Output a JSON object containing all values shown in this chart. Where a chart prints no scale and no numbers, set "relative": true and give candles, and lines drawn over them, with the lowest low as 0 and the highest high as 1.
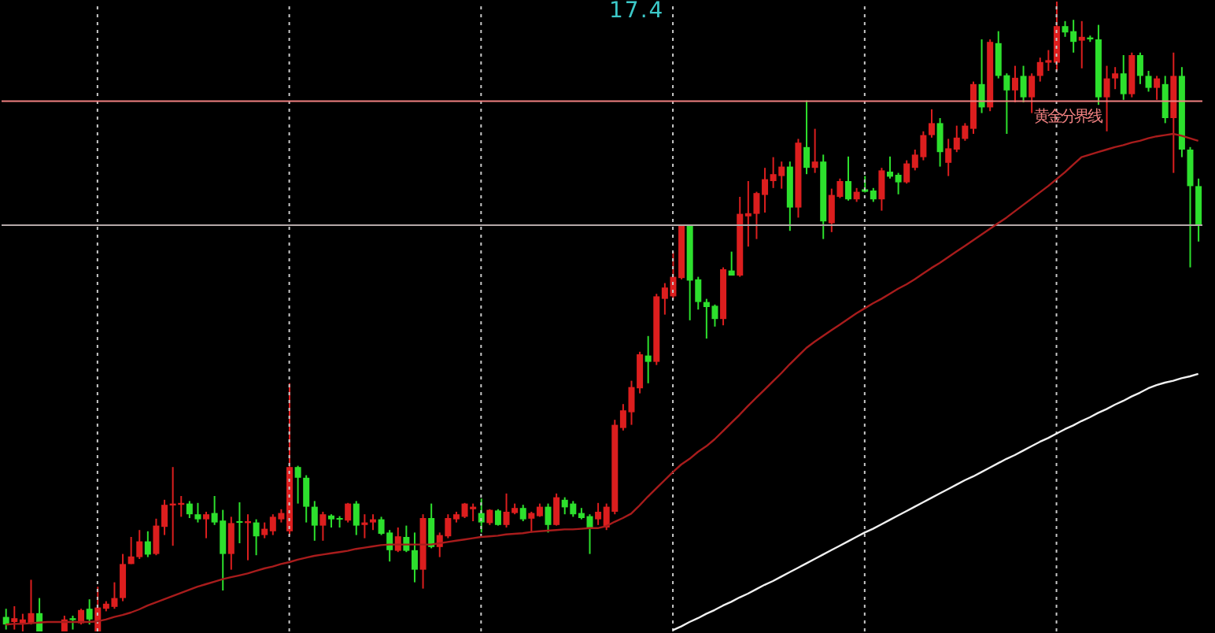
{
  "chart_data": {
    "type": "candlestick",
    "relative": true,
    "annotations": [
      "17.4"
    ],
    "categories": [
      null,
      null,
      null,
      null,
      null,
      null,
      null,
      null,
      null,
      null,
      null,
      null,
      null,
      null,
      null,
      null,
      null,
      null,
      null,
      null,
      null,
      null,
      null,
      null,
      null,
      null,
      null,
      null,
      null,
      null,
      null,
      null,
      null,
      null,
      null,
      null,
      null,
      null,
      null,
      null,
      null,
      null,
      null,
      null,
      null,
      null,
      null,
      null,
      null,
      null,
      null,
      null,
      null,
      null,
      null,
      null,
      null,
      null,
      null,
      null,
      null,
      null,
      null,
      null,
      null,
      null,
      null,
      null,
      null,
      null,
      null,
      null,
      null,
      null,
      null,
      null,
      null,
      null,
      null,
      null,
      null,
      null,
      null,
      null,
      null,
      null,
      null,
      null,
      null,
      null,
      null,
      null,
      null,
      null,
      null,
      null,
      null,
      null,
      null,
      null,
      null,
      null,
      null,
      null,
      null,
      null,
      null,
      null,
      null,
      null,
      null,
      null,
      null,
      null,
      null,
      null,
      null,
      null,
      null,
      null,
      null,
      null,
      null,
      null,
      null,
      null,
      null,
      null,
      null,
      null,
      null,
      null,
      null,
      null,
      null,
      null,
      null,
      null,
      null,
      null,
      null,
      null,
      null,
      null
    ],
    "ohlc": [
      [
        0.023,
        0.036,
        0.003,
        0.011
      ],
      [
        0.015,
        0.04,
        0.003,
        0.021
      ],
      [
        0.013,
        0.028,
        0,
        0.019
      ],
      [
        0.013,
        0.082,
        0.011,
        0.029
      ],
      [
        0.029,
        0.053,
        0,
        0
      ],
      null,
      null,
      [
        0,
        0.025,
        0,
        0.019
      ],
      [
        0.021,
        0.025,
        0.003,
        0.018
      ],
      [
        0.013,
        0.036,
        0.011,
        0.034
      ],
      [
        0.036,
        0.051,
        0.011,
        0.019
      ],
      [
        0,
        0.071,
        0,
        0.038
      ],
      [
        0.036,
        0.048,
        0.032,
        0.044
      ],
      [
        0.039,
        0.078,
        0.036,
        0.053
      ],
      [
        0.053,
        0.123,
        0.048,
        0.107
      ],
      [
        0.107,
        0.15,
        0.107,
        0.119
      ],
      [
        0.118,
        0.161,
        0.115,
        0.143
      ],
      [
        0.143,
        0.159,
        0.118,
        0.122
      ],
      [
        0.123,
        0.179,
        0.121,
        0.168
      ],
      [
        0.166,
        0.209,
        0.153,
        0.201
      ],
      [
        0.2,
        0.261,
        0.136,
        0.203
      ],
      [
        0.201,
        0.215,
        0.182,
        0.204
      ],
      [
        0.203,
        0.207,
        0.18,
        0.186
      ],
      [
        0.186,
        0.204,
        0.173,
        0.178
      ],
      [
        0.178,
        0.19,
        0.148,
        0.186
      ],
      [
        0.188,
        0.215,
        0.169,
        0.173
      ],
      [
        0.176,
        0.193,
        0.065,
        0.123
      ],
      [
        0.123,
        0.182,
        0.098,
        0.172
      ],
      [
        0.175,
        0.205,
        0.14,
        0.173
      ],
      [
        0.172,
        0.186,
        0.113,
        0.175
      ],
      [
        0.173,
        0.178,
        0.121,
        0.151
      ],
      [
        0.153,
        0.173,
        0.148,
        0.163
      ],
      [
        0.159,
        0.186,
        0.153,
        0.182
      ],
      [
        0.178,
        0.194,
        0.173,
        0.188
      ],
      [
        0.159,
        0.394,
        0.153,
        0.261
      ],
      [
        0.261,
        0.263,
        0.203,
        0.244
      ],
      [
        0.244,
        0.248,
        0.173,
        0.198
      ],
      [
        0.198,
        0.207,
        0.144,
        0.168
      ],
      [
        0.168,
        0.19,
        0.144,
        0.186
      ],
      [
        0.184,
        0.186,
        0.165,
        0.178
      ],
      [
        0.18,
        0.183,
        0.165,
        0.178
      ],
      [
        0.176,
        0.204,
        0.173,
        0.203
      ],
      [
        0.203,
        0.207,
        0.153,
        0.168
      ],
      [
        0.169,
        0.186,
        0.148,
        0.173
      ],
      [
        0.173,
        0.186,
        0.161,
        0.178
      ],
      [
        0.178,
        0.182,
        0.153,
        0.155
      ],
      [
        0.157,
        0.161,
        0.111,
        0.129
      ],
      [
        0.128,
        0.165,
        0.126,
        0.151
      ],
      [
        0.15,
        0.168,
        0.126,
        0.128
      ],
      [
        0.129,
        0.157,
        0.078,
        0.098
      ],
      [
        0.098,
        0.186,
        0.068,
        0.18
      ],
      [
        0.18,
        0.203,
        0.132,
        0.134
      ],
      [
        0.134,
        0.157,
        0.118,
        0.153
      ],
      [
        0.151,
        0.186,
        0.148,
        0.18
      ],
      [
        0.178,
        0.19,
        0.173,
        0.186
      ],
      [
        0.182,
        0.204,
        0.18,
        0.203
      ],
      [
        0.194,
        0.203,
        0.175,
        0.198
      ],
      [
        0.188,
        0.211,
        0.157,
        0.173
      ],
      [
        0.172,
        0.194,
        0.169,
        0.193
      ],
      [
        0.192,
        0.194,
        0.168,
        0.169
      ],
      [
        0.169,
        0.219,
        0.165,
        0.19
      ],
      [
        0.188,
        0.203,
        0.186,
        0.196
      ],
      [
        0.196,
        0.201,
        0.175,
        0.178
      ],
      [
        0.179,
        0.19,
        0.157,
        0.188
      ],
      [
        0.183,
        0.203,
        0.182,
        0.198
      ],
      [
        0.198,
        0.203,
        0.157,
        0.169
      ],
      [
        0.169,
        0.219,
        0.168,
        0.213
      ],
      [
        0.209,
        0.213,
        0.186,
        0.197
      ],
      [
        0.203,
        0.207,
        0.182,
        0.186
      ],
      [
        0.188,
        0.196,
        0.178,
        0.18
      ],
      [
        0.183,
        0.186,
        0.123,
        0.165
      ],
      [
        0.178,
        0.204,
        0.169,
        0.19
      ],
      [
        0.165,
        0.203,
        0.161,
        0.198
      ],
      [
        0.19,
        0.336,
        0.186,
        0.328
      ],
      [
        0.323,
        0.361,
        0.319,
        0.351
      ],
      [
        0.348,
        0.398,
        0.328,
        0.388
      ],
      [
        0.386,
        0.444,
        0.378,
        0.44
      ],
      [
        0.438,
        0.469,
        0.394,
        0.428
      ],
      [
        0.428,
        0.536,
        0.423,
        0.532
      ],
      [
        0.528,
        0.553,
        0.503,
        0.546
      ],
      [
        0.532,
        0.603,
        0.528,
        0.563
      ],
      [
        0.561,
        0.646,
        0.559,
        0.644
      ],
      [
        0.644,
        0.646,
        0.494,
        0.557
      ],
      [
        0.559,
        0.563,
        0.511,
        0.523
      ],
      [
        0.523,
        0.528,
        0.465,
        0.515
      ],
      [
        0.517,
        0.519,
        0.484,
        0.496
      ],
      [
        0.496,
        0.578,
        0.486,
        0.575
      ],
      [
        0.573,
        0.603,
        0.565,
        0.565
      ],
      [
        0.565,
        0.69,
        0.563,
        0.663
      ],
      [
        0.659,
        0.715,
        0.611,
        0.664
      ],
      [
        0.663,
        0.698,
        0.623,
        0.696
      ],
      [
        0.693,
        0.736,
        0.665,
        0.718
      ],
      [
        0.715,
        0.753,
        0.704,
        0.726
      ],
      [
        0.723,
        0.746,
        0.703,
        0.738
      ],
      [
        0.738,
        0.746,
        0.636,
        0.673
      ],
      [
        0.673,
        0.782,
        0.657,
        0.776
      ],
      [
        0.769,
        0.843,
        0.726,
        0.736
      ],
      [
        0.736,
        0.798,
        0.728,
        0.746
      ],
      [
        0.746,
        0.757,
        0.623,
        0.651
      ],
      [
        0.648,
        0.703,
        0.634,
        0.693
      ],
      [
        0.69,
        0.719,
        0.688,
        0.715
      ],
      [
        0.715,
        0.754,
        0.684,
        0.686
      ],
      [
        0.686,
        0.704,
        0.682,
        0.698
      ],
      [
        0.702,
        0.723,
        0.697,
        0.698
      ],
      [
        0.7,
        0.704,
        0.682,
        0.686
      ],
      [
        0.686,
        0.736,
        0.668,
        0.732
      ],
      [
        0.73,
        0.754,
        0.719,
        0.722
      ],
      [
        0.725,
        0.728,
        0.694,
        0.713
      ],
      [
        0.713,
        0.748,
        0.711,
        0.743
      ],
      [
        0.736,
        0.765,
        0.732,
        0.757
      ],
      [
        0.753,
        0.794,
        0.748,
        0.788
      ],
      [
        0.788,
        0.829,
        0.784,
        0.807
      ],
      [
        0.807,
        0.815,
        0.738,
        0.761
      ],
      [
        0.744,
        0.782,
        0.723,
        0.767
      ],
      [
        0.765,
        0.803,
        0.761,
        0.784
      ],
      [
        0.782,
        0.807,
        0.779,
        0.803
      ],
      [
        0.798,
        0.873,
        0.79,
        0.869
      ],
      [
        0.869,
        0.94,
        0.823,
        0.832
      ],
      [
        0.832,
        0.94,
        0.826,
        0.936
      ],
      [
        0.934,
        0.953,
        0.878,
        0.882
      ],
      [
        0.883,
        0.886,
        0.79,
        0.859
      ],
      [
        0.859,
        0.898,
        0.84,
        0.879
      ],
      [
        0.882,
        0.898,
        0.84,
        0.848
      ],
      [
        0.848,
        0.886,
        0.823,
        0.882
      ],
      [
        0.882,
        0.911,
        0.873,
        0.904
      ],
      [
        0.903,
        0.923,
        0.89,
        0.907
      ],
      [
        0.903,
        1,
        0.89,
        0.961
      ],
      [
        0.961,
        0.969,
        0.944,
        0.951
      ],
      [
        0.953,
        0.971,
        0.919,
        0.936
      ],
      [
        0.938,
        0.969,
        0.894,
        0.944
      ],
      [
        0.943,
        0.946,
        0.936,
        0.94
      ],
      [
        0.94,
        0.963,
        0.836,
        0.848
      ],
      [
        0.848,
        0.898,
        0.794,
        0.878
      ],
      [
        0.878,
        0.896,
        0.861,
        0.886
      ],
      [
        0.886,
        0.915,
        0.844,
        0.853
      ],
      [
        0.853,
        0.919,
        0.848,
        0.915
      ],
      [
        0.915,
        0.919,
        0.869,
        0.882
      ],
      [
        0.882,
        0.89,
        0.857,
        0.863
      ],
      [
        0.863,
        0.882,
        0.844,
        0.878
      ],
      [
        0.869,
        0.882,
        0.807,
        0.815
      ],
      [
        0.815,
        0.919,
        0.728,
        0.882
      ],
      [
        0.882,
        0.896,
        0.753,
        0.765
      ],
      [
        0.765,
        0.769,
        0.578,
        0.707
      ],
      [
        0.707,
        0.719,
        0.619,
        0.644
      ]
    ],
    "colors": [
      "#2de02d",
      "#dc1e1e",
      "#dc1e1e",
      "#dc1e1e",
      "#2de02d",
      null,
      null,
      "#dc1e1e",
      "#2de02d",
      "#dc1e1e",
      "#2de02d",
      "#dc1e1e",
      "#dc1e1e",
      "#dc1e1e",
      "#dc1e1e",
      "#dc1e1e",
      "#dc1e1e",
      "#2de02d",
      "#dc1e1e",
      "#dc1e1e",
      "#dc1e1e",
      "#dc1e1e",
      "#2de02d",
      "#2de02d",
      "#dc1e1e",
      "#2de02d",
      "#2de02d",
      "#dc1e1e",
      "#2de02d",
      "#dc1e1e",
      "#2de02d",
      "#dc1e1e",
      "#dc1e1e",
      "#dc1e1e",
      "#dc1e1e",
      "#2de02d",
      "#2de02d",
      "#2de02d",
      "#dc1e1e",
      "#2de02d",
      "#2de02d",
      "#dc1e1e",
      "#2de02d",
      "#dc1e1e",
      "#dc1e1e",
      "#2de02d",
      "#2de02d",
      "#dc1e1e",
      "#2de02d",
      "#2de02d",
      "#dc1e1e",
      "#2de02d",
      "#dc1e1e",
      "#dc1e1e",
      "#dc1e1e",
      "#dc1e1e",
      "#dc1e1e",
      "#2de02d",
      "#dc1e1e",
      "#2de02d",
      "#dc1e1e",
      "#dc1e1e",
      "#2de02d",
      "#dc1e1e",
      "#dc1e1e",
      "#2de02d",
      "#dc1e1e",
      "#2de02d",
      "#2de02d",
      "#2de02d",
      "#2de02d",
      "#dc1e1e",
      "#dc1e1e",
      "#dc1e1e",
      "#dc1e1e",
      "#dc1e1e",
      "#dc1e1e",
      "#2de02d",
      "#dc1e1e",
      "#dc1e1e",
      "#dc1e1e",
      "#dc1e1e",
      "#2de02d",
      "#2de02d",
      "#2de02d",
      "#2de02d",
      "#dc1e1e",
      "#2de02d",
      "#dc1e1e",
      "#dc1e1e",
      "#dc1e1e",
      "#dc1e1e",
      "#dc1e1e",
      "#dc1e1e",
      "#2de02d",
      "#dc1e1e",
      "#2de02d",
      "#dc1e1e",
      "#2de02d",
      "#dc1e1e",
      "#dc1e1e",
      "#2de02d",
      "#dc1e1e",
      "#2de02d",
      "#2de02d",
      "#dc1e1e",
      "#2de02d",
      "#2de02d",
      "#dc1e1e",
      "#dc1e1e",
      "#dc1e1e",
      "#dc1e1e",
      "#2de02d",
      "#dc1e1e",
      "#dc1e1e",
      "#dc1e1e",
      "#dc1e1e",
      "#2de02d",
      "#dc1e1e",
      "#2de02d",
      "#2de02d",
      "#dc1e1e",
      "#2de02d",
      "#dc1e1e",
      "#dc1e1e",
      "#dc1e1e",
      "#dc1e1e",
      "#2de02d",
      "#2de02d",
      "#dc1e1e",
      "#2de02d",
      "#2de02d",
      "#dc1e1e",
      "#dc1e1e",
      "#2de02d",
      "#dc1e1e",
      "#2de02d",
      "#2de02d",
      "#dc1e1e",
      "#2de02d",
      "#dc1e1e",
      "#2de02d",
      "#2de02d",
      "#2de02d"
    ],
    "series": [
      {
        "type": "line",
        "color": "#a81c1c",
        "values": [
          0.011,
          0.012,
          0.012,
          0.013,
          0.014,
          0.015,
          0.015,
          0.015,
          0.015,
          0.015,
          0.015,
          0.016,
          0.019,
          0.023,
          0.026,
          0.03,
          0.035,
          0.041,
          0.046,
          0.051,
          0.056,
          0.061,
          0.066,
          0.071,
          0.075,
          0.079,
          0.083,
          0.086,
          0.089,
          0.092,
          0.096,
          0.1,
          0.103,
          0.107,
          0.11,
          0.114,
          0.117,
          0.12,
          0.122,
          0.124,
          0.126,
          0.128,
          0.131,
          0.133,
          0.135,
          0.137,
          0.138,
          0.138,
          0.138,
          0.138,
          0.138,
          0.138,
          0.14,
          0.142,
          0.144,
          0.146,
          0.148,
          0.15,
          0.151,
          0.152,
          0.154,
          0.155,
          0.156,
          0.158,
          0.159,
          0.16,
          0.161,
          0.162,
          0.162,
          0.163,
          0.164,
          0.164,
          0.167,
          0.174,
          0.18,
          0.187,
          0.2,
          0.214,
          0.227,
          0.24,
          0.253,
          0.265,
          0.274,
          0.285,
          0.294,
          0.305,
          0.318,
          0.331,
          0.344,
          0.358,
          0.371,
          0.384,
          0.397,
          0.41,
          0.424,
          0.437,
          0.45,
          0.46,
          0.469,
          0.478,
          0.487,
          0.496,
          0.505,
          0.513,
          0.521,
          0.528,
          0.536,
          0.544,
          0.551,
          0.559,
          0.568,
          0.577,
          0.585,
          0.594,
          0.603,
          0.612,
          0.621,
          0.63,
          0.639,
          0.648,
          0.657,
          0.667,
          0.677,
          0.687,
          0.697,
          0.707,
          0.718,
          0.729,
          0.741,
          0.753,
          0.757,
          0.761,
          0.765,
          0.769,
          0.772,
          0.776,
          0.779,
          0.783,
          0.786,
          0.788,
          0.79,
          0.787,
          0.783,
          0.779
        ]
      },
      {
        "type": "line",
        "color": "#f0f0f0",
        "values": [
          null,
          null,
          null,
          null,
          null,
          null,
          null,
          null,
          null,
          null,
          null,
          null,
          null,
          null,
          null,
          null,
          null,
          null,
          null,
          null,
          null,
          null,
          null,
          null,
          null,
          null,
          null,
          null,
          null,
          null,
          null,
          null,
          null,
          null,
          null,
          null,
          null,
          null,
          null,
          null,
          null,
          null,
          null,
          null,
          null,
          null,
          null,
          null,
          null,
          null,
          null,
          null,
          null,
          null,
          null,
          null,
          null,
          null,
          null,
          null,
          null,
          null,
          null,
          null,
          null,
          null,
          null,
          null,
          null,
          null,
          null,
          null,
          null,
          null,
          null,
          null,
          null,
          null,
          null,
          null,
          0.002,
          0.008,
          0.015,
          0.021,
          0.028,
          0.034,
          0.041,
          0.047,
          0.054,
          0.06,
          0.067,
          0.074,
          0.08,
          0.087,
          0.094,
          0.101,
          0.108,
          0.115,
          0.122,
          0.129,
          0.136,
          0.143,
          0.15,
          0.157,
          0.163,
          0.17,
          0.177,
          0.184,
          0.191,
          0.198,
          0.205,
          0.212,
          0.219,
          0.226,
          0.233,
          0.24,
          0.246,
          0.253,
          0.26,
          0.267,
          0.274,
          0.28,
          0.287,
          0.294,
          0.301,
          0.307,
          0.314,
          0.321,
          0.327,
          0.334,
          0.34,
          0.347,
          0.353,
          0.36,
          0.366,
          0.373,
          0.379,
          0.386,
          0.391,
          0.395,
          0.398,
          0.402,
          0.405,
          0.409
        ]
      }
    ],
    "ref_lines": [
      {
        "axis": "y",
        "value": 0.842,
        "label": "黄金分界线",
        "color": "#f08080"
      },
      {
        "axis": "y",
        "value": 0.645,
        "color": "#b4a8a8"
      }
    ]
  }
}
